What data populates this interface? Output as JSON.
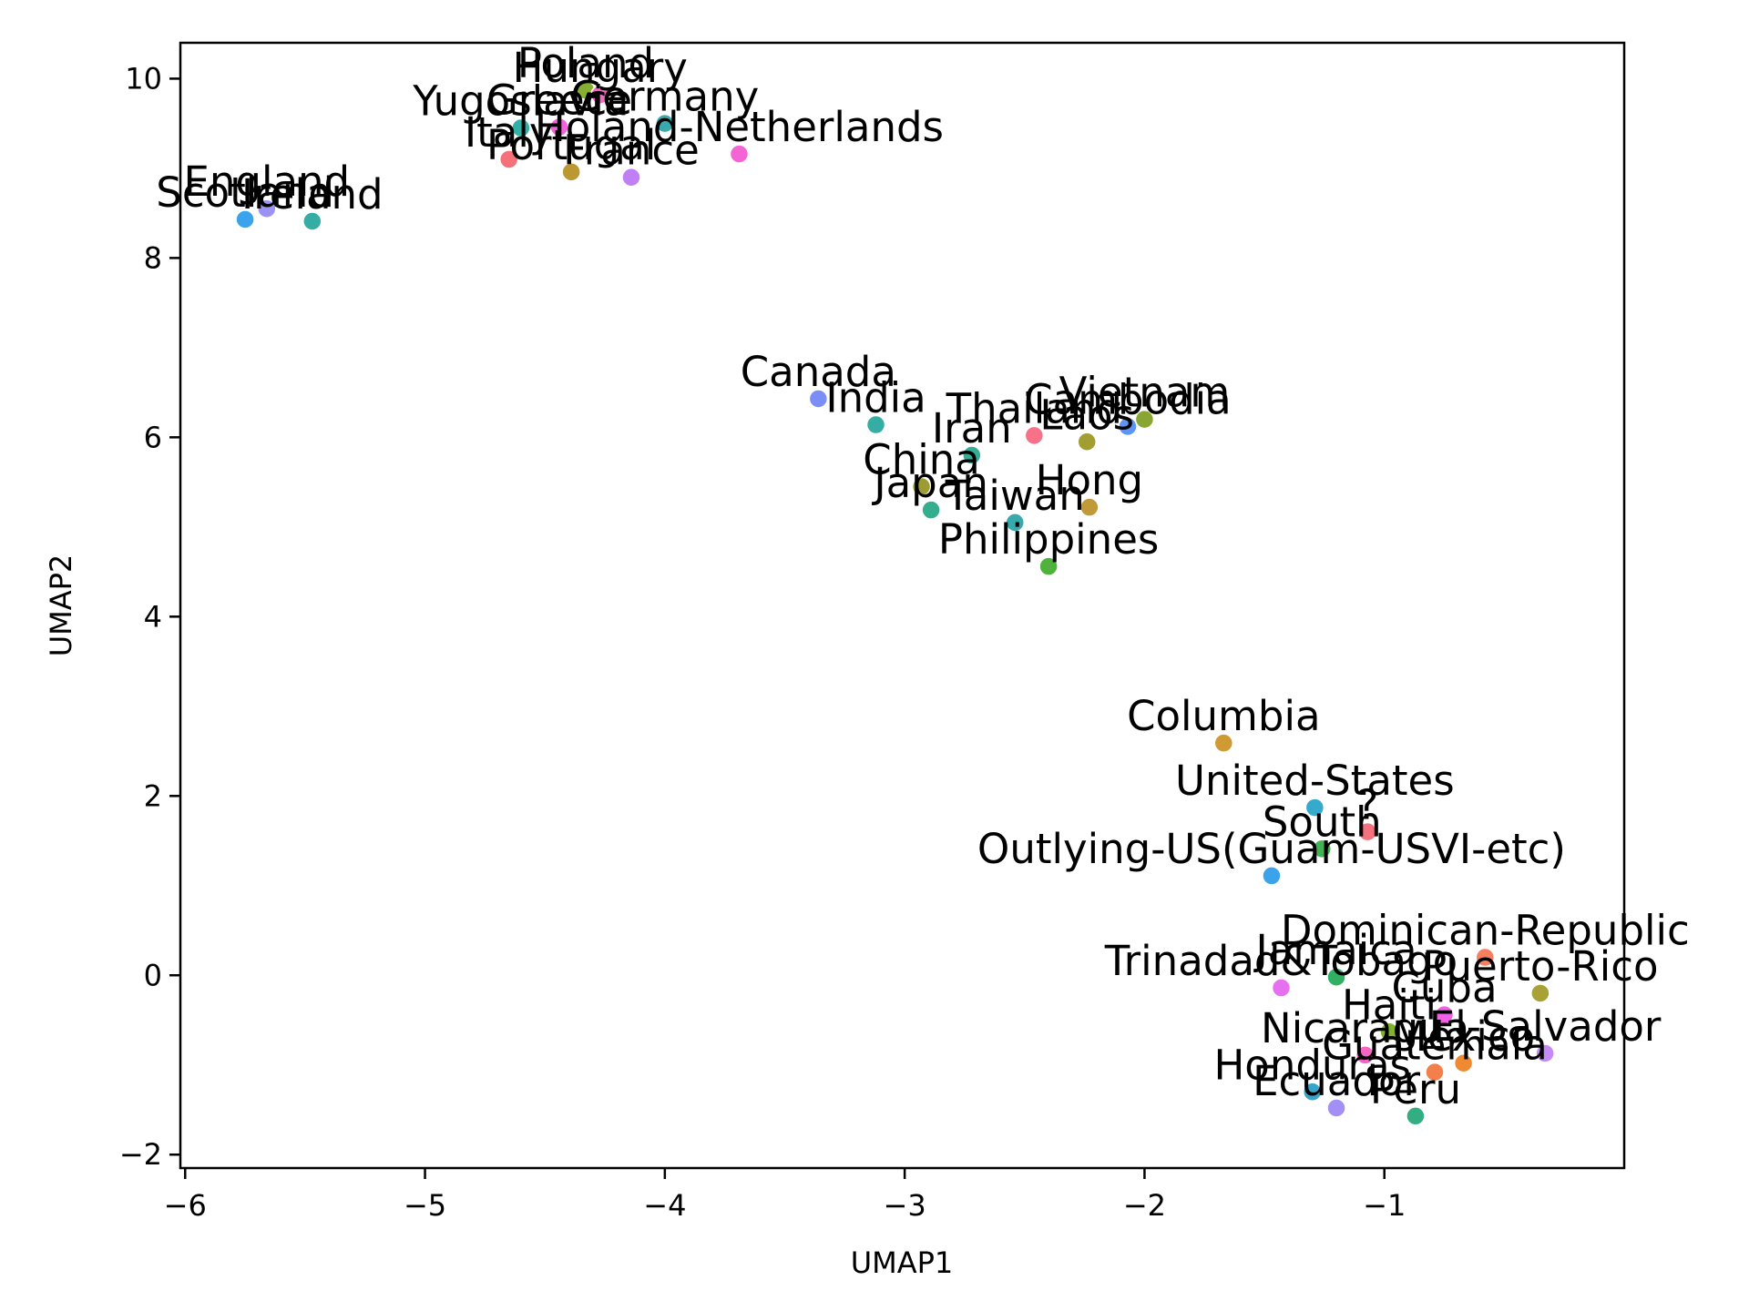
{
  "chart_data": {
    "type": "scatter",
    "title": "",
    "xlabel": "UMAP1",
    "ylabel": "UMAP2",
    "xlim": [
      -6.02,
      0.0
    ],
    "ylim": [
      -2.15,
      10.4
    ],
    "xticks": [
      -6,
      -5,
      -4,
      -3,
      -2,
      -1
    ],
    "xtick_labels": [
      "−6",
      "−5",
      "−4",
      "−3",
      "−2",
      "−1"
    ],
    "yticks": [
      -2,
      0,
      2,
      4,
      6,
      8,
      10
    ],
    "ytick_labels": [
      "−2",
      "0",
      "2",
      "4",
      "6",
      "8",
      "10"
    ],
    "grid": false,
    "legend": "none",
    "points": [
      {
        "label": "Scotland",
        "x": -5.75,
        "y": 8.43,
        "color": "#3ba3ec"
      },
      {
        "label": "England",
        "x": -5.66,
        "y": 8.55,
        "color": "#9c91f5"
      },
      {
        "label": "Ireland",
        "x": -5.47,
        "y": 8.41,
        "color": "#36ada4"
      },
      {
        "label": "Poland",
        "x": -4.33,
        "y": 9.87,
        "color": "#86ad34"
      },
      {
        "label": "Hungary",
        "x": -4.27,
        "y": 9.82,
        "color": "#f668c2"
      },
      {
        "label": "Yugoslavia",
        "x": -4.6,
        "y": 9.45,
        "color": "#33b0a6"
      },
      {
        "label": "Greece",
        "x": -4.44,
        "y": 9.46,
        "color": "#f461dd"
      },
      {
        "label": "Germany",
        "x": -4.0,
        "y": 9.5,
        "color": "#38aaac"
      },
      {
        "label": "Holand-Netherlands",
        "x": -3.69,
        "y": 9.16,
        "color": "#f564d4"
      },
      {
        "label": "Italy",
        "x": -4.65,
        "y": 9.1,
        "color": "#f6707a"
      },
      {
        "label": "Portugal",
        "x": -4.39,
        "y": 8.96,
        "color": "#bb9832"
      },
      {
        "label": "France",
        "x": -4.14,
        "y": 8.9,
        "color": "#c07ff4"
      },
      {
        "label": "Canada",
        "x": -3.36,
        "y": 6.43,
        "color": "#7b8ef7"
      },
      {
        "label": "India",
        "x": -3.12,
        "y": 6.14,
        "color": "#36ada4"
      },
      {
        "label": "Thailand",
        "x": -2.46,
        "y": 6.02,
        "color": "#f77189"
      },
      {
        "label": "Laos",
        "x": -2.24,
        "y": 5.95,
        "color": "#a39e31"
      },
      {
        "label": "Cambodia",
        "x": -2.07,
        "y": 6.12,
        "color": "#5d94f6"
      },
      {
        "label": "Vietnam",
        "x": -2.0,
        "y": 6.2,
        "color": "#88a631"
      },
      {
        "label": "Iran",
        "x": -2.72,
        "y": 5.8,
        "color": "#35ad97"
      },
      {
        "label": "China",
        "x": -2.93,
        "y": 5.45,
        "color": "#9c9c32"
      },
      {
        "label": "Japan",
        "x": -2.89,
        "y": 5.19,
        "color": "#34ae8e"
      },
      {
        "label": "Taiwan",
        "x": -2.54,
        "y": 5.05,
        "color": "#38aaac"
      },
      {
        "label": "Hong",
        "x": -2.23,
        "y": 5.22,
        "color": "#c09a38"
      },
      {
        "label": "Philippines",
        "x": -2.4,
        "y": 4.56,
        "color": "#4fb23c"
      },
      {
        "label": "Columbia",
        "x": -1.67,
        "y": 2.59,
        "color": "#d09a33"
      },
      {
        "label": "United-States",
        "x": -1.29,
        "y": 1.87,
        "color": "#35aacd"
      },
      {
        "label": "?",
        "x": -1.07,
        "y": 1.6,
        "color": "#f5717d"
      },
      {
        "label": "South",
        "x": -1.26,
        "y": 1.41,
        "color": "#43b255"
      },
      {
        "label": "Outlying-US(Guam-USVI-etc)",
        "x": -1.47,
        "y": 1.11,
        "color": "#3ba3ec"
      },
      {
        "label": "Dominican-Republic",
        "x": -0.58,
        "y": 0.2,
        "color": "#f77f5f"
      },
      {
        "label": "Jamaica",
        "x": -1.2,
        "y": -0.02,
        "color": "#31b064"
      },
      {
        "label": "Trinadad&Tobago",
        "x": -1.43,
        "y": -0.14,
        "color": "#e770f0"
      },
      {
        "label": "Puerto-Rico",
        "x": -0.35,
        "y": -0.2,
        "color": "#a8a136"
      },
      {
        "label": "Cuba",
        "x": -0.75,
        "y": -0.44,
        "color": "#f061e6"
      },
      {
        "label": "Haiti",
        "x": -0.98,
        "y": -0.63,
        "color": "#7fb22f"
      },
      {
        "label": "El-Salvador",
        "x": -0.33,
        "y": -0.87,
        "color": "#c58af5"
      },
      {
        "label": "Mexico",
        "x": -0.67,
        "y": -0.98,
        "color": "#ef8a32"
      },
      {
        "label": "Nicaragua",
        "x": -1.08,
        "y": -0.89,
        "color": "#f565c4"
      },
      {
        "label": "Guatemala",
        "x": -0.79,
        "y": -1.08,
        "color": "#f57f4a"
      },
      {
        "label": "Honduras",
        "x": -1.3,
        "y": -1.3,
        "color": "#36a5c8"
      },
      {
        "label": "Ecuador",
        "x": -1.2,
        "y": -1.48,
        "color": "#a48ff6"
      },
      {
        "label": "Peru",
        "x": -0.87,
        "y": -1.57,
        "color": "#33ae83"
      }
    ]
  }
}
